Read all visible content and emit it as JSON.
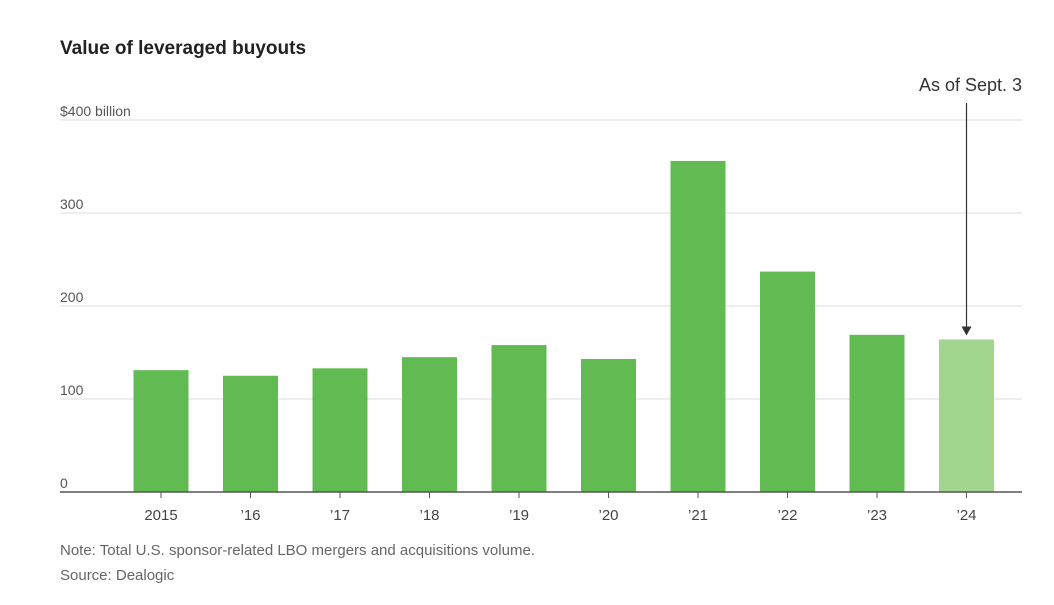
{
  "chart_data": {
    "type": "bar",
    "title": "Value of leveraged buyouts",
    "categories": [
      "2015",
      "’16",
      "’17",
      "’18",
      "’19",
      "’20",
      "’21",
      "’22",
      "’23",
      "’24"
    ],
    "values": [
      131,
      125,
      133,
      145,
      158,
      143,
      356,
      237,
      169,
      164
    ],
    "ylim": [
      0,
      400
    ],
    "yticks": [
      0,
      100,
      200,
      300,
      400
    ],
    "ytick_labels": [
      "0",
      "100",
      "200",
      "300",
      "$400 billion"
    ],
    "grid": true,
    "colors": {
      "bar": "#62bb52",
      "bar_highlight": "#a2d68f",
      "gridline": "#dddddd",
      "axis": "#555555"
    },
    "highlight_index": 9,
    "annotation": {
      "text": "As of Sept. 3",
      "target_index": 9
    }
  },
  "footnote": {
    "note": "Note: Total U.S. sponsor-related LBO mergers and acquisitions volume.",
    "source": "Source: Dealogic"
  }
}
